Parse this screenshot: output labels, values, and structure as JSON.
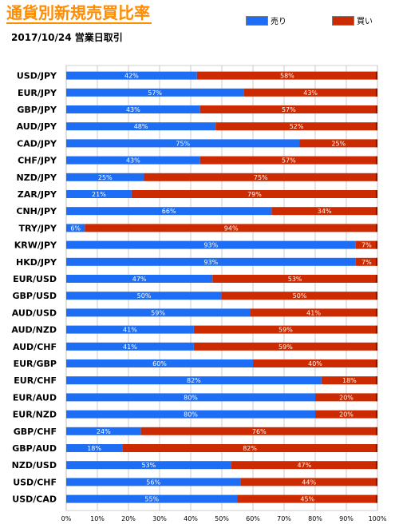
{
  "header": {
    "title": "通貨別新規売買比率",
    "subtitle": "2017/10/24 営業日取引"
  },
  "colors": {
    "sell": "#1e6ef5",
    "buy": "#cc2a00",
    "grid": "#bfbfbf",
    "bar_end": "#7a1a00"
  },
  "chart_data": {
    "type": "bar",
    "orientation": "horizontal",
    "stacked": true,
    "percent": true,
    "categories": [
      "USD/JPY",
      "EUR/JPY",
      "GBP/JPY",
      "AUD/JPY",
      "CAD/JPY",
      "CHF/JPY",
      "NZD/JPY",
      "ZAR/JPY",
      "CNH/JPY",
      "TRY/JPY",
      "KRW/JPY",
      "HKD/JPY",
      "EUR/USD",
      "GBP/USD",
      "AUD/USD",
      "AUD/NZD",
      "AUD/CHF",
      "EUR/GBP",
      "EUR/CHF",
      "EUR/AUD",
      "EUR/NZD",
      "GBP/CHF",
      "GBP/AUD",
      "NZD/USD",
      "USD/CHF",
      "USD/CAD"
    ],
    "series": [
      {
        "name": "売り",
        "values": [
          42,
          57,
          43,
          48,
          75,
          43,
          25,
          21,
          66,
          6,
          93,
          93,
          47,
          50,
          59,
          41,
          41,
          60,
          82,
          80,
          80,
          24,
          18,
          53,
          56,
          55
        ]
      },
      {
        "name": "買い",
        "values": [
          58,
          43,
          57,
          52,
          25,
          57,
          75,
          79,
          34,
          94,
          7,
          7,
          53,
          50,
          41,
          59,
          59,
          40,
          18,
          20,
          20,
          76,
          82,
          47,
          44,
          45
        ]
      }
    ],
    "xlim": [
      0,
      100
    ],
    "xticks": [
      "0%",
      "10%",
      "20%",
      "30%",
      "40%",
      "50%",
      "60%",
      "70%",
      "80%",
      "90%",
      "100%"
    ],
    "legend": "top-right",
    "grid": true
  }
}
